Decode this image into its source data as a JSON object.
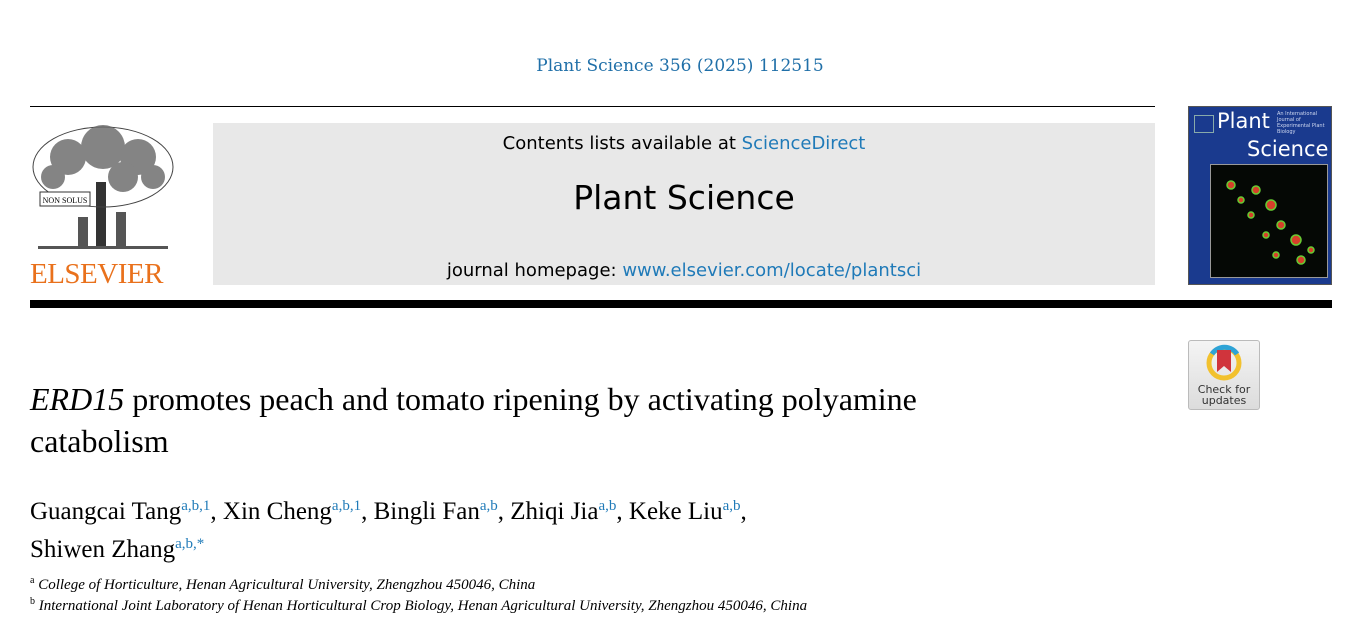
{
  "citation": "Plant Science 356 (2025) 112515",
  "masthead": {
    "contents_prefix": "Contents lists available at ",
    "sciencedirect": "ScienceDirect",
    "journal_title": "Plant Science",
    "homepage_prefix": "journal homepage: ",
    "homepage_url": "www.elsevier.com/locate/plantsci"
  },
  "publisher_logo": {
    "text": "ELSEVIER",
    "motto": "NON SOLUS",
    "color": "#e9711c"
  },
  "cover": {
    "title_line1": "Plant",
    "title_line2": "Science",
    "subtitle": "An International Journal of Experimental Plant Biology"
  },
  "check_updates": {
    "line1": "Check for",
    "line2": "updates"
  },
  "article": {
    "title_italic": "ERD15",
    "title_rest": " promotes peach and tomato ripening by activating polyamine catabolism"
  },
  "authors": [
    {
      "name": "Guangcai Tang",
      "sup": "a,b,1",
      "sep": ", "
    },
    {
      "name": "Xin Cheng",
      "sup": "a,b,1",
      "sep": ", "
    },
    {
      "name": "Bingli Fan",
      "sup": "a,b",
      "sep": ", "
    },
    {
      "name": "Zhiqi Jia",
      "sup": "a,b",
      "sep": ", "
    },
    {
      "name": "Keke Liu",
      "sup": "a,b",
      "sep": ","
    },
    {
      "name": "Shiwen Zhang",
      "sup": "a,b,*",
      "sep": ""
    }
  ],
  "affiliations": [
    {
      "key": "a",
      "text": "College of Horticulture, Henan Agricultural University, Zhengzhou 450046, China"
    },
    {
      "key": "b",
      "text": "International Joint Laboratory of Henan Horticultural Crop Biology, Henan Agricultural University, Zhengzhou 450046, China"
    }
  ],
  "colors": {
    "link": "#1f7ab8",
    "elsevier_orange": "#e9711c",
    "cover_blue": "#1a3a8e"
  }
}
